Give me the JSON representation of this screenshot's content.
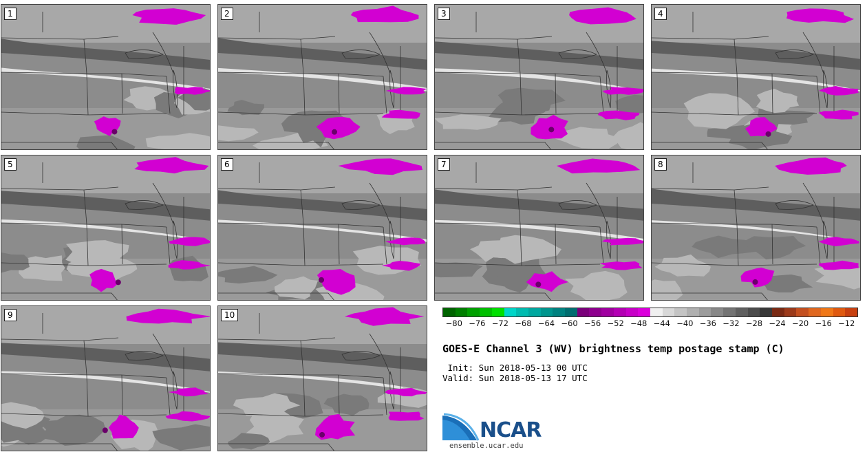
{
  "stamps": [
    {
      "label": "1"
    },
    {
      "label": "2"
    },
    {
      "label": "3"
    },
    {
      "label": "4"
    },
    {
      "label": "5"
    },
    {
      "label": "6"
    },
    {
      "label": "7"
    },
    {
      "label": "8"
    },
    {
      "label": "9"
    },
    {
      "label": "10"
    }
  ],
  "colorbar": {
    "colors": [
      "#006400",
      "#007f00",
      "#00a000",
      "#00c000",
      "#00e000",
      "#00d6c8",
      "#00bcb0",
      "#00a8a0",
      "#00968e",
      "#008280",
      "#006e70",
      "#7a007a",
      "#8e008e",
      "#a000a0",
      "#b400b4",
      "#c800c8",
      "#dc00dc",
      "#f0f0f0",
      "#d8d8d8",
      "#c4c4c4",
      "#b0b0b0",
      "#9c9c9c",
      "#888888",
      "#747474",
      "#606060",
      "#4c4c4c",
      "#383838",
      "#7a2a14",
      "#9c3a1a",
      "#c45020",
      "#e06820",
      "#f07818",
      "#e05a10",
      "#c84010"
    ],
    "tick_labels": [
      "−80",
      "−76",
      "−72",
      "−68",
      "−64",
      "−60",
      "−56",
      "−52",
      "−48",
      "−44",
      "−40",
      "−36",
      "−32",
      "−28",
      "−24",
      "−20",
      "−16",
      "−12"
    ],
    "min": -82,
    "max": -10
  },
  "title": "GOES-E Channel 3 (WV) brightness temp postage stamp (C)",
  "init_line": " Init: Sun 2018-05-13 00 UTC",
  "valid_line": "Valid: Sun 2018-05-13 17 UTC",
  "logo_text": "NCAR",
  "url": "ensemble.ucar.edu"
}
